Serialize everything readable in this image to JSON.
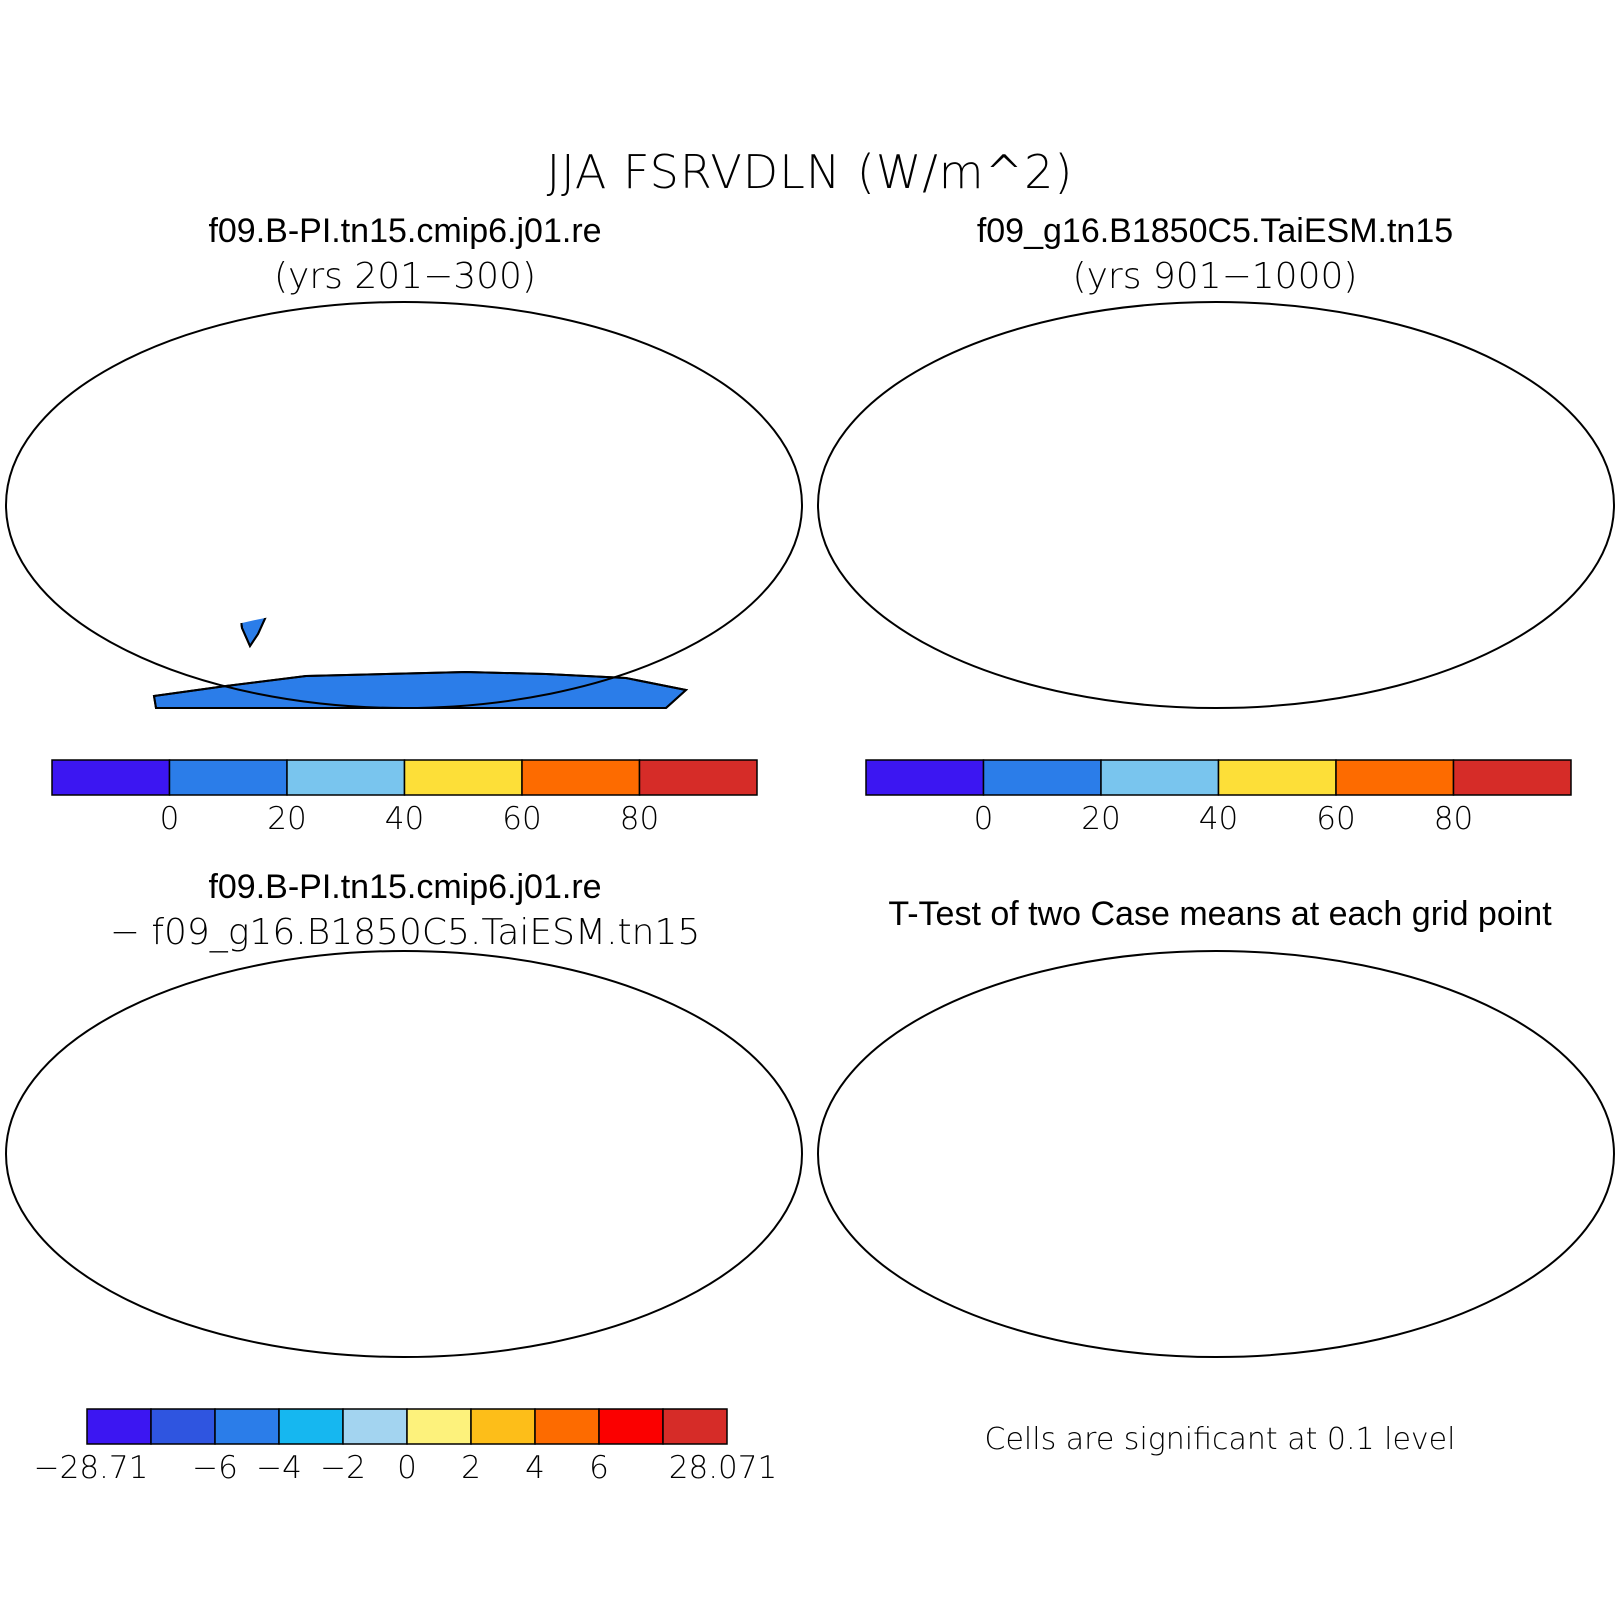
{
  "title": "JJA FSRVDLN (W/m^2)",
  "panels": [
    {
      "id": "case1",
      "title": "f09.B-PI.tn15.cmip6.j01.re",
      "subtitle": "(yrs 201−300)"
    },
    {
      "id": "case2",
      "title": "f09_g16.B1850C5.TaiESM.tn15",
      "subtitle": "(yrs 901−1000)"
    },
    {
      "id": "diff",
      "title": "f09.B-PI.tn15.cmip6.j01.re",
      "subtitle": "− f09_g16.B1850C5.TaiESM.tn15"
    },
    {
      "id": "ttest",
      "title": "T-Test of two Case means at each grid point",
      "note": "Cells are significant at 0.1 level"
    }
  ],
  "colorbar_top": {
    "colors": [
      "#3c16f2",
      "#2b7de9",
      "#79c5ee",
      "#fddf38",
      "#fd6b00",
      "#d62c28"
    ],
    "labels": [
      "0",
      "20",
      "40",
      "60",
      "80"
    ]
  },
  "colorbar_diff": {
    "colors": [
      "#3c16f2",
      "#2f55e0",
      "#2b7de9",
      "#16b7f0",
      "#a3d4f0",
      "#fdf27c",
      "#fdbe19",
      "#fd6b00",
      "#fb0000",
      "#d62c28"
    ],
    "labels": [
      "−28.71",
      "−6",
      "−4",
      "−2",
      "0",
      "2",
      "4",
      "6",
      "28.071"
    ]
  },
  "colors": {
    "ocean": "#ffffff",
    "land_base": "#2b7de9",
    "sig": "#fb0000"
  }
}
